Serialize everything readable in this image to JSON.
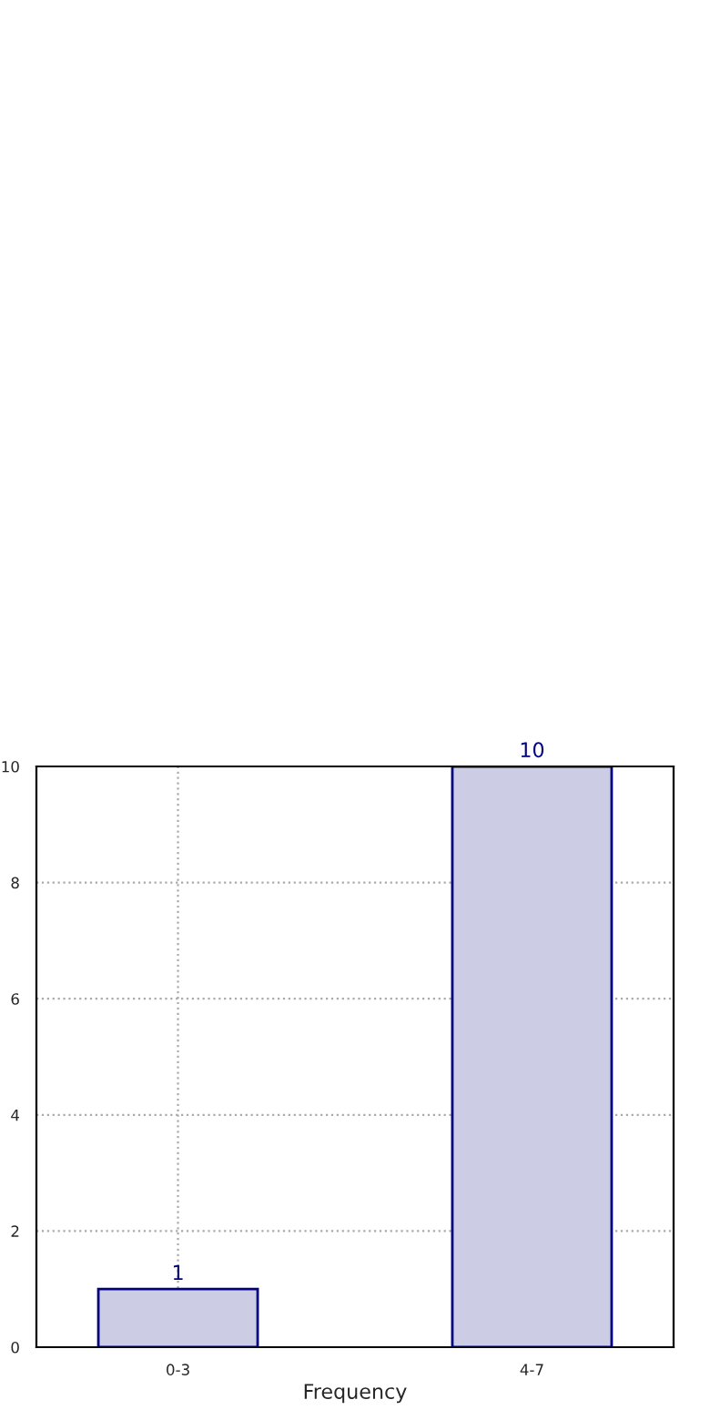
{
  "chart_data": {
    "type": "bar",
    "xlabel": "Frequency",
    "categories": [
      "0-3",
      "4-7"
    ],
    "series": [
      {
        "color": "#cccce5",
        "values": [
          1,
          10
        ]
      }
    ],
    "ylim": [
      0,
      10
    ],
    "yticks": [
      0,
      2,
      4,
      6,
      8,
      10
    ],
    "grid": true,
    "data_labels": true
  }
}
